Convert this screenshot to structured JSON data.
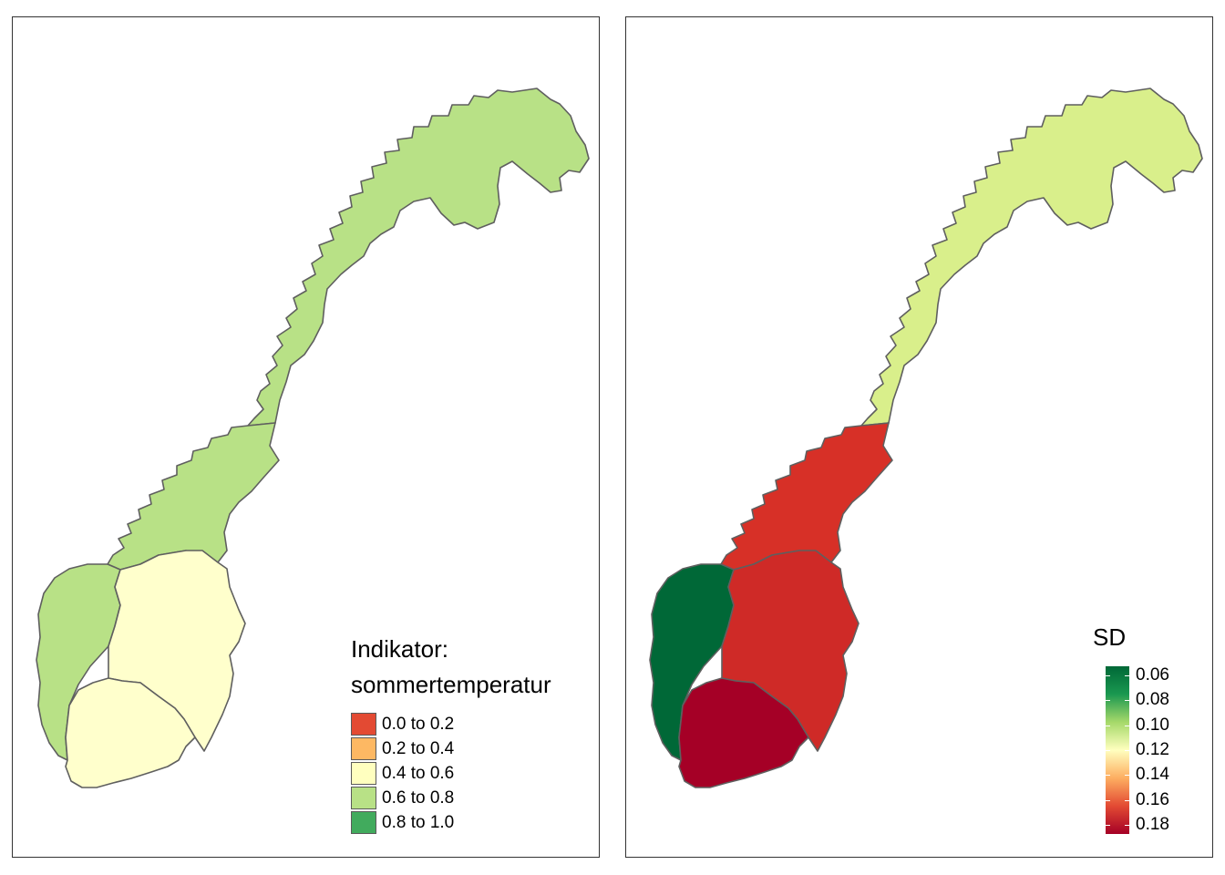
{
  "left_map": {
    "legend_title_line1": "Indikator:",
    "legend_title_line2": "sommertemperatur",
    "legend_items": [
      {
        "label": "0.0 to 0.2",
        "color": "#e34a33"
      },
      {
        "label": "0.2 to 0.4",
        "color": "#fdb863"
      },
      {
        "label": "0.4 to 0.6",
        "color": "#ffffbf"
      },
      {
        "label": "0.6 to 0.8",
        "color": "#b8e186"
      },
      {
        "label": "0.8 to 1.0",
        "color": "#41ab5d"
      }
    ],
    "region_colors": {
      "north": "#b8e186",
      "mid": "#b8e186",
      "west": "#b8e186",
      "east": "#ffffcc",
      "south": "#ffffcc"
    }
  },
  "right_map": {
    "legend_title": "SD",
    "legend_ticks": [
      "0.06",
      "0.08",
      "0.10",
      "0.12",
      "0.14",
      "0.16",
      "0.18"
    ],
    "gradient_colors": [
      "#006837",
      "#1a9850",
      "#a6d96a",
      "#ffffbf",
      "#fdae61",
      "#e34a33",
      "#a50026"
    ],
    "region_colors": {
      "north": "#d9ef8b",
      "mid": "#d73027",
      "west": "#006837",
      "east": "#cf2a27",
      "south": "#a50026"
    }
  },
  "colors": {
    "border": "#5f5f5f",
    "frame": "#333333"
  }
}
